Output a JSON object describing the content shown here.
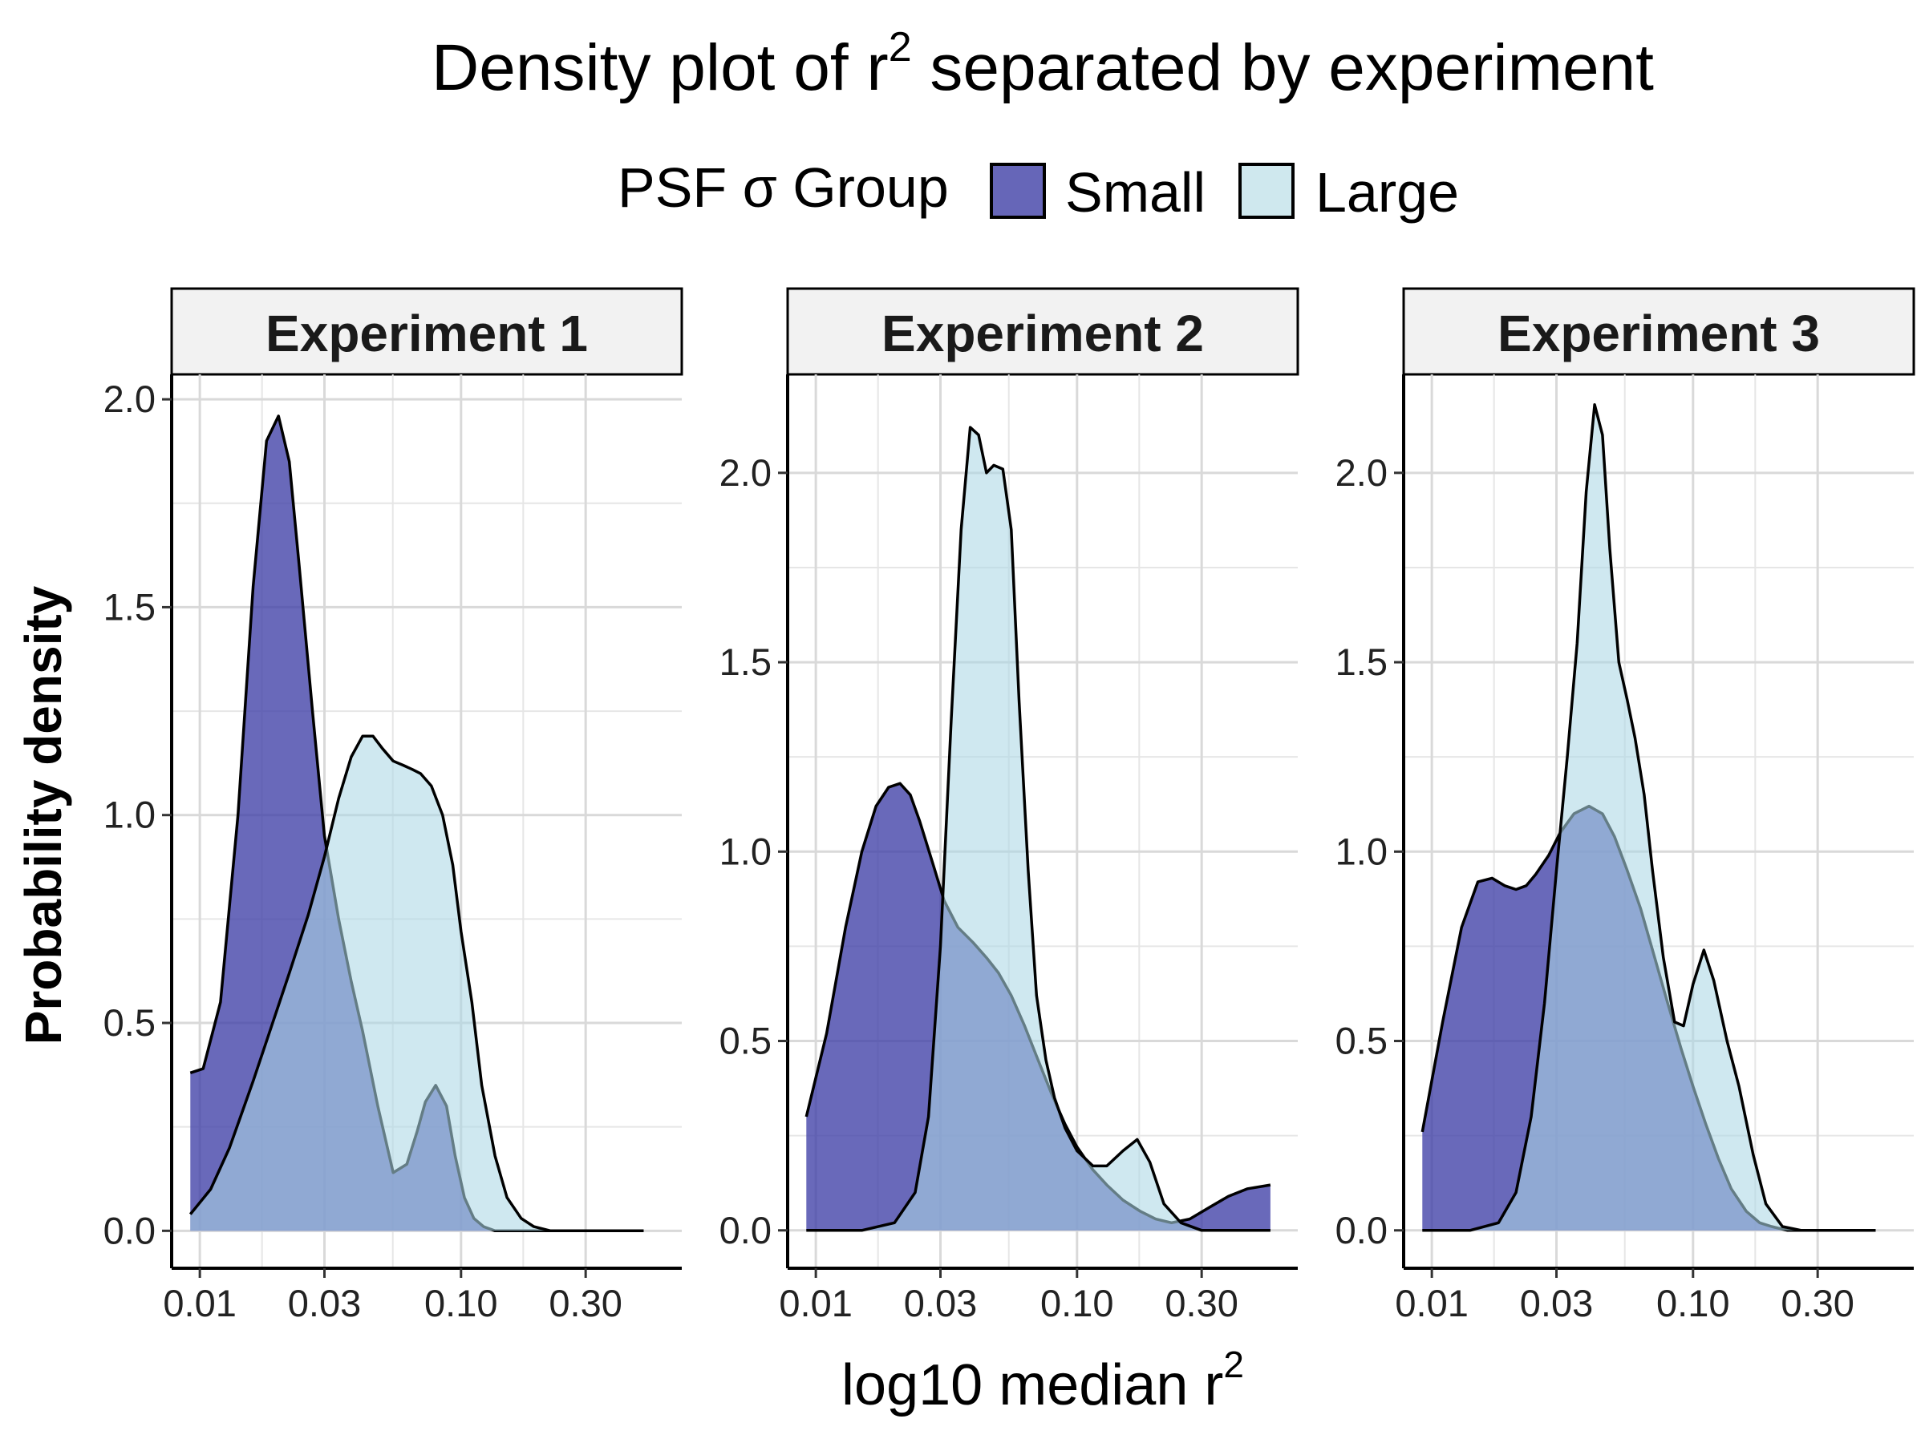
{
  "chart_data": {
    "type": "area",
    "title_main": "Density plot of r",
    "title_sup": "2",
    "title_rest": " separated by experiment",
    "xlabel_main": "log10 median r",
    "xlabel_sup": "2",
    "ylabel": "Probability density",
    "x_scale": "log10",
    "grid": true,
    "legend": {
      "position": "top",
      "title": "PSF σ Group",
      "entries": [
        {
          "name": "Small",
          "color": "#3f3fa6"
        },
        {
          "name": "Large",
          "color": "#add8e6"
        }
      ]
    },
    "x_ticks": [
      0.01,
      0.03,
      0.1,
      0.3
    ],
    "x_tick_labels": [
      "0.01",
      "0.03",
      "0.10",
      "0.30"
    ],
    "y_ticks": [
      0.0,
      0.5,
      1.0,
      1.5,
      2.0
    ],
    "y_tick_labels": [
      "0.0",
      "0.5",
      "1.0",
      "1.5",
      "2.0"
    ],
    "panels": [
      {
        "label": "Experiment 1",
        "xlim": [
          0.0078,
          0.7
        ],
        "ylim": [
          -0.09,
          2.06
        ],
        "series": [
          {
            "name": "Small",
            "x": [
              0.0092,
              0.0103,
              0.012,
              0.014,
              0.016,
              0.018,
              0.02,
              0.022,
              0.024,
              0.027,
              0.03,
              0.034,
              0.038,
              0.042,
              0.048,
              0.055,
              0.062,
              0.068,
              0.073,
              0.08,
              0.088,
              0.095,
              0.103,
              0.112,
              0.122,
              0.135,
              0.15,
              0.17,
              0.2,
              0.25,
              0.35,
              0.5
            ],
            "y": [
              0.38,
              0.39,
              0.55,
              1.0,
              1.55,
              1.9,
              1.96,
              1.85,
              1.6,
              1.25,
              0.95,
              0.75,
              0.6,
              0.48,
              0.3,
              0.14,
              0.16,
              0.24,
              0.31,
              0.35,
              0.3,
              0.18,
              0.08,
              0.03,
              0.01,
              0.0,
              0.0,
              0.0,
              0.0,
              0.0,
              0.0,
              0.0
            ]
          },
          {
            "name": "Large",
            "x": [
              0.0092,
              0.011,
              0.013,
              0.016,
              0.019,
              0.022,
              0.026,
              0.03,
              0.034,
              0.038,
              0.042,
              0.046,
              0.05,
              0.055,
              0.06,
              0.065,
              0.07,
              0.077,
              0.085,
              0.093,
              0.1,
              0.11,
              0.12,
              0.135,
              0.15,
              0.17,
              0.19,
              0.22,
              0.26,
              0.32,
              0.4,
              0.5
            ],
            "y": [
              0.04,
              0.1,
              0.2,
              0.36,
              0.5,
              0.62,
              0.76,
              0.9,
              1.04,
              1.14,
              1.19,
              1.19,
              1.16,
              1.13,
              1.12,
              1.11,
              1.1,
              1.07,
              1.0,
              0.88,
              0.72,
              0.55,
              0.35,
              0.18,
              0.08,
              0.03,
              0.01,
              0.0,
              0.0,
              0.0,
              0.0,
              0.0
            ]
          }
        ]
      },
      {
        "label": "Experiment 2",
        "xlim": [
          0.0078,
          0.7
        ],
        "ylim": [
          -0.1,
          2.26
        ],
        "series": [
          {
            "name": "Small",
            "x": [
              0.0092,
              0.011,
              0.013,
              0.015,
              0.017,
              0.019,
              0.021,
              0.023,
              0.025,
              0.028,
              0.031,
              0.035,
              0.04,
              0.045,
              0.05,
              0.056,
              0.063,
              0.07,
              0.08,
              0.09,
              0.1,
              0.115,
              0.13,
              0.15,
              0.175,
              0.2,
              0.23,
              0.27,
              0.32,
              0.38,
              0.45,
              0.55
            ],
            "y": [
              0.3,
              0.52,
              0.8,
              1.0,
              1.12,
              1.17,
              1.18,
              1.15,
              1.08,
              0.97,
              0.87,
              0.8,
              0.76,
              0.72,
              0.68,
              0.62,
              0.54,
              0.46,
              0.36,
              0.28,
              0.22,
              0.16,
              0.12,
              0.08,
              0.05,
              0.03,
              0.02,
              0.03,
              0.06,
              0.09,
              0.11,
              0.12
            ]
          },
          {
            "name": "Large",
            "x": [
              0.0092,
              0.015,
              0.02,
              0.024,
              0.027,
              0.03,
              0.033,
              0.036,
              0.039,
              0.042,
              0.045,
              0.048,
              0.052,
              0.056,
              0.06,
              0.065,
              0.07,
              0.076,
              0.082,
              0.09,
              0.1,
              0.115,
              0.13,
              0.15,
              0.17,
              0.19,
              0.215,
              0.25,
              0.3,
              0.38,
              0.45,
              0.55
            ],
            "y": [
              0.0,
              0.0,
              0.02,
              0.1,
              0.3,
              0.75,
              1.35,
              1.85,
              2.12,
              2.1,
              2.0,
              2.02,
              2.01,
              1.85,
              1.4,
              0.95,
              0.62,
              0.45,
              0.35,
              0.27,
              0.21,
              0.17,
              0.17,
              0.21,
              0.24,
              0.18,
              0.07,
              0.02,
              0.0,
              0.0,
              0.0,
              0.0
            ]
          }
        ]
      },
      {
        "label": "Experiment 3",
        "xlim": [
          0.0078,
          0.7
        ],
        "ylim": [
          -0.1,
          2.26
        ],
        "series": [
          {
            "name": "Small",
            "x": [
              0.0092,
              0.011,
              0.013,
              0.015,
              0.017,
              0.019,
              0.021,
              0.023,
              0.025,
              0.028,
              0.031,
              0.035,
              0.04,
              0.045,
              0.05,
              0.056,
              0.063,
              0.07,
              0.08,
              0.09,
              0.1,
              0.112,
              0.125,
              0.14,
              0.16,
              0.18,
              0.2,
              0.23,
              0.27,
              0.32,
              0.4,
              0.5
            ],
            "y": [
              0.26,
              0.55,
              0.8,
              0.92,
              0.93,
              0.91,
              0.9,
              0.91,
              0.94,
              0.99,
              1.05,
              1.1,
              1.12,
              1.1,
              1.04,
              0.95,
              0.85,
              0.74,
              0.6,
              0.48,
              0.38,
              0.28,
              0.19,
              0.11,
              0.05,
              0.02,
              0.01,
              0.0,
              0.0,
              0.0,
              0.0,
              0.0
            ]
          },
          {
            "name": "Large",
            "x": [
              0.0092,
              0.014,
              0.018,
              0.021,
              0.024,
              0.027,
              0.03,
              0.033,
              0.036,
              0.039,
              0.042,
              0.045,
              0.048,
              0.052,
              0.056,
              0.06,
              0.065,
              0.07,
              0.077,
              0.085,
              0.092,
              0.1,
              0.11,
              0.12,
              0.135,
              0.15,
              0.17,
              0.19,
              0.22,
              0.26,
              0.32,
              0.5
            ],
            "y": [
              0.0,
              0.0,
              0.02,
              0.1,
              0.3,
              0.6,
              0.95,
              1.25,
              1.55,
              1.95,
              2.18,
              2.1,
              1.8,
              1.5,
              1.4,
              1.3,
              1.15,
              0.95,
              0.72,
              0.55,
              0.54,
              0.65,
              0.74,
              0.66,
              0.5,
              0.38,
              0.2,
              0.07,
              0.01,
              0.0,
              0.0,
              0.0
            ]
          }
        ]
      }
    ]
  }
}
